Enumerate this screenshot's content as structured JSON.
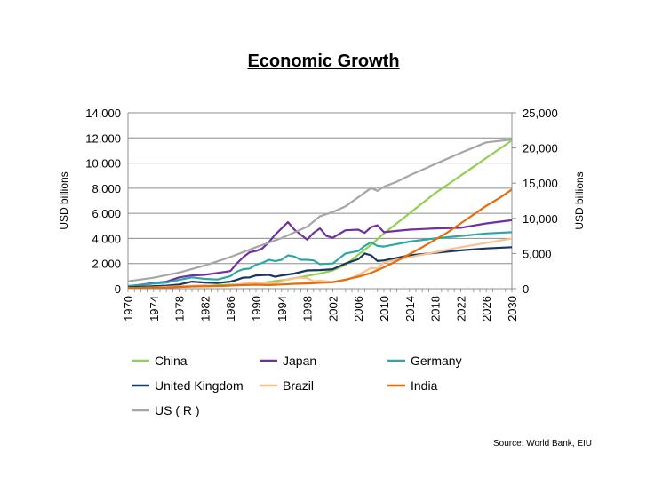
{
  "chart_data": {
    "type": "line",
    "title": "Economic Growth",
    "ylabel": "USD billions",
    "ylabel_right": "USD billions",
    "xlabel": "",
    "ylim": [
      0,
      14000
    ],
    "ylim_right": [
      0,
      25000
    ],
    "yticks": [
      "0",
      "2,000",
      "4,000",
      "6,000",
      "8,000",
      "10,000",
      "12,000",
      "14,000"
    ],
    "yticks_right": [
      "0",
      "5,000",
      "10,000",
      "15,000",
      "20,000",
      "25,000"
    ],
    "xlim": [
      1970,
      2030
    ],
    "xticks": [
      "1970",
      "1974",
      "1978",
      "1982",
      "1986",
      "1990",
      "1994",
      "1998",
      "2002",
      "2006",
      "2010",
      "2014",
      "2018",
      "2022",
      "2026",
      "2030"
    ],
    "grid": "horizontal",
    "legend_position": "bottom",
    "source": "Source: World Bank, EIU",
    "series": [
      {
        "name": "China",
        "color": "#92d050",
        "axis": "left",
        "points": [
          [
            1970,
            100
          ],
          [
            1975,
            150
          ],
          [
            1980,
            190
          ],
          [
            1985,
            300
          ],
          [
            1990,
            390
          ],
          [
            1993,
            600
          ],
          [
            1995,
            730
          ],
          [
            1998,
            1020
          ],
          [
            2000,
            1200
          ],
          [
            2002,
            1450
          ],
          [
            2004,
            1900
          ],
          [
            2006,
            2700
          ],
          [
            2008,
            3500
          ],
          [
            2010,
            4400
          ],
          [
            2012,
            5200
          ],
          [
            2014,
            6000
          ],
          [
            2016,
            6800
          ],
          [
            2018,
            7600
          ],
          [
            2020,
            8300
          ],
          [
            2022,
            9000
          ],
          [
            2024,
            9700
          ],
          [
            2026,
            10400
          ],
          [
            2028,
            11100
          ],
          [
            2030,
            11800
          ]
        ]
      },
      {
        "name": "Japan",
        "color": "#7030a0",
        "axis": "left",
        "points": [
          [
            1970,
            200
          ],
          [
            1972,
            310
          ],
          [
            1974,
            450
          ],
          [
            1976,
            550
          ],
          [
            1978,
            900
          ],
          [
            1980,
            1050
          ],
          [
            1982,
            1100
          ],
          [
            1984,
            1250
          ],
          [
            1986,
            1400
          ],
          [
            1987,
            2000
          ],
          [
            1988,
            2500
          ],
          [
            1989,
            2900
          ],
          [
            1990,
            3000
          ],
          [
            1991,
            3200
          ],
          [
            1992,
            3700
          ],
          [
            1993,
            4300
          ],
          [
            1994,
            4800
          ],
          [
            1995,
            5300
          ],
          [
            1996,
            4700
          ],
          [
            1997,
            4300
          ],
          [
            1998,
            3900
          ],
          [
            1999,
            4450
          ],
          [
            2000,
            4800
          ],
          [
            2001,
            4200
          ],
          [
            2002,
            4050
          ],
          [
            2004,
            4650
          ],
          [
            2006,
            4700
          ],
          [
            2007,
            4450
          ],
          [
            2008,
            4900
          ],
          [
            2009,
            5050
          ],
          [
            2010,
            4500
          ],
          [
            2012,
            4600
          ],
          [
            2014,
            4700
          ],
          [
            2016,
            4750
          ],
          [
            2018,
            4800
          ],
          [
            2020,
            4820
          ],
          [
            2022,
            4850
          ],
          [
            2026,
            5200
          ],
          [
            2030,
            5450
          ]
        ]
      },
      {
        "name": "Germany",
        "color": "#2ca7a7",
        "axis": "left",
        "points": [
          [
            1970,
            210
          ],
          [
            1974,
            400
          ],
          [
            1976,
            480
          ],
          [
            1978,
            700
          ],
          [
            1980,
            900
          ],
          [
            1982,
            780
          ],
          [
            1984,
            730
          ],
          [
            1986,
            1000
          ],
          [
            1987,
            1350
          ],
          [
            1988,
            1550
          ],
          [
            1989,
            1600
          ],
          [
            1990,
            1900
          ],
          [
            1991,
            2050
          ],
          [
            1992,
            2300
          ],
          [
            1993,
            2200
          ],
          [
            1994,
            2300
          ],
          [
            1995,
            2650
          ],
          [
            1996,
            2550
          ],
          [
            1997,
            2300
          ],
          [
            1998,
            2300
          ],
          [
            1999,
            2250
          ],
          [
            2000,
            1950
          ],
          [
            2002,
            2000
          ],
          [
            2004,
            2800
          ],
          [
            2006,
            3000
          ],
          [
            2007,
            3400
          ],
          [
            2008,
            3700
          ],
          [
            2009,
            3400
          ],
          [
            2010,
            3350
          ],
          [
            2012,
            3550
          ],
          [
            2014,
            3750
          ],
          [
            2018,
            4000
          ],
          [
            2022,
            4200
          ],
          [
            2026,
            4400
          ],
          [
            2030,
            4500
          ]
        ]
      },
      {
        "name": "United Kingdom",
        "color": "#17375e",
        "axis": "left",
        "points": [
          [
            1970,
            120
          ],
          [
            1974,
            200
          ],
          [
            1976,
            240
          ],
          [
            1978,
            330
          ],
          [
            1980,
            560
          ],
          [
            1982,
            490
          ],
          [
            1984,
            450
          ],
          [
            1986,
            560
          ],
          [
            1987,
            700
          ],
          [
            1988,
            880
          ],
          [
            1989,
            900
          ],
          [
            1990,
            1050
          ],
          [
            1992,
            1100
          ],
          [
            1993,
            950
          ],
          [
            1994,
            1050
          ],
          [
            1996,
            1200
          ],
          [
            1998,
            1450
          ],
          [
            2000,
            1480
          ],
          [
            2002,
            1550
          ],
          [
            2004,
            2000
          ],
          [
            2006,
            2350
          ],
          [
            2007,
            2800
          ],
          [
            2008,
            2650
          ],
          [
            2009,
            2200
          ],
          [
            2010,
            2250
          ],
          [
            2012,
            2450
          ],
          [
            2014,
            2650
          ],
          [
            2018,
            2850
          ],
          [
            2022,
            3050
          ],
          [
            2026,
            3200
          ],
          [
            2030,
            3300
          ]
        ]
      },
      {
        "name": "Brazil",
        "color": "#fac090",
        "axis": "left",
        "points": [
          [
            1970,
            40
          ],
          [
            1974,
            100
          ],
          [
            1978,
            190
          ],
          [
            1982,
            270
          ],
          [
            1984,
            200
          ],
          [
            1986,
            250
          ],
          [
            1988,
            400
          ],
          [
            1989,
            450
          ],
          [
            1990,
            480
          ],
          [
            1992,
            390
          ],
          [
            1993,
            430
          ],
          [
            1994,
            550
          ],
          [
            1995,
            770
          ],
          [
            1996,
            840
          ],
          [
            1997,
            870
          ],
          [
            1998,
            840
          ],
          [
            1999,
            590
          ],
          [
            2000,
            640
          ],
          [
            2002,
            500
          ],
          [
            2004,
            660
          ],
          [
            2006,
            1090
          ],
          [
            2008,
            1650
          ],
          [
            2009,
            1600
          ],
          [
            2010,
            2100
          ],
          [
            2014,
            2500
          ],
          [
            2018,
            2900
          ],
          [
            2022,
            3300
          ],
          [
            2026,
            3650
          ],
          [
            2030,
            4000
          ]
        ]
      },
      {
        "name": "India",
        "color": "#e46c0a",
        "axis": "left",
        "points": [
          [
            1970,
            60
          ],
          [
            1976,
            100
          ],
          [
            1980,
            180
          ],
          [
            1984,
            210
          ],
          [
            1988,
            290
          ],
          [
            1990,
            320
          ],
          [
            1992,
            290
          ],
          [
            1994,
            330
          ],
          [
            1996,
            390
          ],
          [
            1998,
            420
          ],
          [
            2000,
            470
          ],
          [
            2002,
            520
          ],
          [
            2004,
            720
          ],
          [
            2006,
            950
          ],
          [
            2008,
            1250
          ],
          [
            2010,
            1700
          ],
          [
            2012,
            2200
          ],
          [
            2014,
            2750
          ],
          [
            2016,
            3300
          ],
          [
            2018,
            3900
          ],
          [
            2020,
            4500
          ],
          [
            2022,
            5200
          ],
          [
            2024,
            5900
          ],
          [
            2026,
            6600
          ],
          [
            2028,
            7200
          ],
          [
            2030,
            7900
          ]
        ]
      },
      {
        "name": "US ( R )",
        "color": "#a6a6a6",
        "axis": "right",
        "points": [
          [
            1970,
            1050
          ],
          [
            1974,
            1550
          ],
          [
            1978,
            2300
          ],
          [
            1982,
            3300
          ],
          [
            1986,
            4500
          ],
          [
            1990,
            5900
          ],
          [
            1994,
            7200
          ],
          [
            1998,
            8800
          ],
          [
            2000,
            10300
          ],
          [
            2002,
            10900
          ],
          [
            2004,
            11700
          ],
          [
            2006,
            13000
          ],
          [
            2008,
            14300
          ],
          [
            2009,
            13900
          ],
          [
            2010,
            14500
          ],
          [
            2012,
            15200
          ],
          [
            2014,
            16100
          ],
          [
            2018,
            17700
          ],
          [
            2022,
            19300
          ],
          [
            2026,
            20800
          ],
          [
            2030,
            21200
          ]
        ]
      }
    ]
  }
}
